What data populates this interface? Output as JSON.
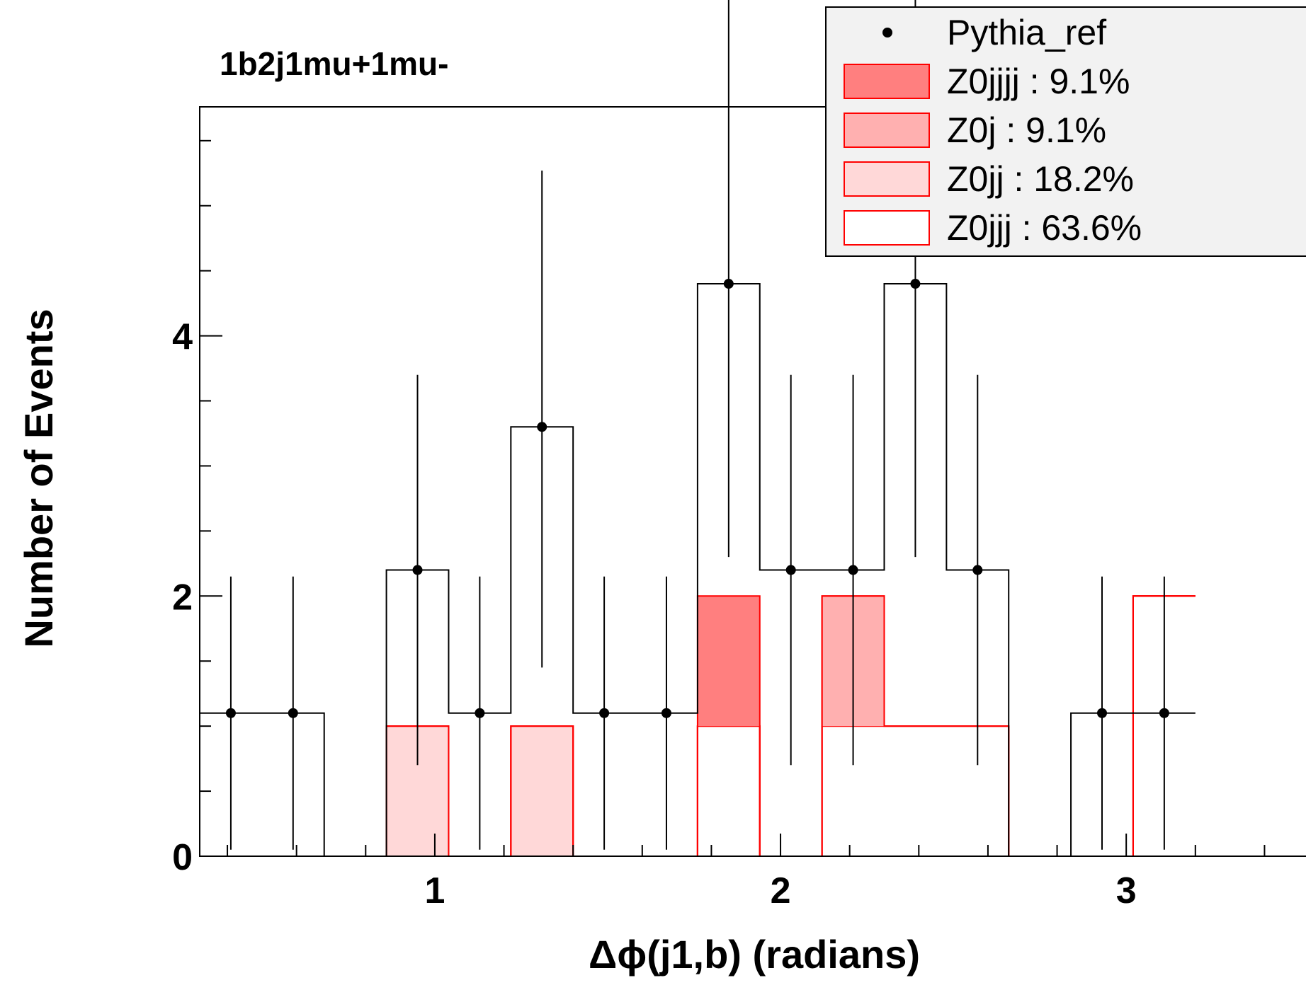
{
  "chart_data": {
    "type": "bar",
    "title": "1b2j1mu+1mu-",
    "xlabel": "Δϕ(j1,b) (radians)",
    "ylabel": "Number of Events",
    "xlim": [
      0.32,
      3.52
    ],
    "ylim": [
      0,
      5.76
    ],
    "xticks": [
      1,
      2,
      3
    ],
    "yticks": [
      0,
      2,
      4
    ],
    "bin_edges": [
      0.32,
      0.5,
      0.68,
      0.86,
      1.04,
      1.22,
      1.4,
      1.58,
      1.76,
      1.94,
      2.12,
      2.3,
      2.48,
      2.66,
      2.84,
      3.02,
      3.2
    ],
    "series": [
      {
        "name": "Pythia_ref",
        "style": "points",
        "color": "#000000",
        "values": [
          1.1,
          1.1,
          0,
          2.2,
          1.1,
          3.3,
          1.1,
          1.1,
          4.4,
          2.2,
          2.2,
          4.4,
          2.2,
          0,
          1.1,
          1.1
        ],
        "err_low": [
          1.05,
          1.05,
          0,
          1.5,
          1.05,
          1.85,
          1.05,
          1.05,
          2.1,
          1.5,
          1.5,
          2.1,
          1.5,
          0,
          1.05,
          1.05
        ],
        "err_high": [
          1.05,
          1.05,
          0,
          1.5,
          1.05,
          1.97,
          1.05,
          1.05,
          2.4,
          1.5,
          1.5,
          2.4,
          1.5,
          0,
          1.05,
          1.05
        ]
      },
      {
        "name": "Z0jjjj : 9.1%",
        "style": "stack",
        "color": "#ff7f7f",
        "values": [
          0,
          0,
          0,
          0,
          0,
          0,
          0,
          0,
          1,
          0,
          0,
          0,
          0,
          0,
          0,
          0
        ]
      },
      {
        "name": "Z0j : 9.1%",
        "style": "stack",
        "color": "#ffb0b0",
        "values": [
          0,
          0,
          0,
          0,
          0,
          0,
          0,
          0,
          0,
          0,
          1,
          0,
          0,
          0,
          0,
          0
        ]
      },
      {
        "name": "Z0jj : 18.2%",
        "style": "stack",
        "color": "#ffd8d8",
        "values": [
          0,
          0,
          0,
          1,
          0,
          1,
          0,
          0,
          0,
          0,
          0,
          0,
          0,
          0,
          0,
          0
        ]
      },
      {
        "name": "Z0jjj : 63.6%",
        "style": "stack",
        "color": "#ffffff",
        "values": [
          0,
          0,
          0,
          0,
          0,
          0,
          0,
          0,
          1,
          0,
          1,
          1,
          1,
          0,
          0,
          2
        ]
      }
    ],
    "legend": "top-right",
    "grid": false
  }
}
